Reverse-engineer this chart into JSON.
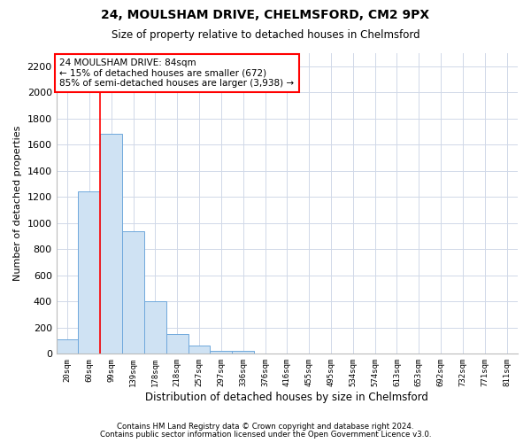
{
  "title1": "24, MOULSHAM DRIVE, CHELMSFORD, CM2 9PX",
  "title2": "Size of property relative to detached houses in Chelmsford",
  "xlabel": "Distribution of detached houses by size in Chelmsford",
  "ylabel": "Number of detached properties",
  "bin_labels": [
    "20sqm",
    "60sqm",
    "99sqm",
    "139sqm",
    "178sqm",
    "218sqm",
    "257sqm",
    "297sqm",
    "336sqm",
    "376sqm",
    "416sqm",
    "455sqm",
    "495sqm",
    "534sqm",
    "574sqm",
    "613sqm",
    "653sqm",
    "692sqm",
    "732sqm",
    "771sqm",
    "811sqm"
  ],
  "bin_values": [
    110,
    1240,
    1680,
    940,
    400,
    150,
    65,
    25,
    20,
    0,
    0,
    0,
    0,
    0,
    0,
    0,
    0,
    0,
    0,
    0,
    0
  ],
  "bar_color": "#cfe2f3",
  "bar_edge_color": "#6fa8dc",
  "vline_x": 1.5,
  "vline_color": "red",
  "annotation_text": "24 MOULSHAM DRIVE: 84sqm\n← 15% of detached houses are smaller (672)\n85% of semi-detached houses are larger (3,938) →",
  "annotation_box_color": "white",
  "annotation_box_edge": "red",
  "ylim": [
    0,
    2300
  ],
  "yticks": [
    0,
    200,
    400,
    600,
    800,
    1000,
    1200,
    1400,
    1600,
    1800,
    2000,
    2200
  ],
  "footnote1": "Contains HM Land Registry data © Crown copyright and database right 2024.",
  "footnote2": "Contains public sector information licensed under the Open Government Licence v3.0.",
  "bg_color": "#ffffff",
  "plot_bg_color": "#ffffff",
  "grid_color": "#d0d8e8"
}
